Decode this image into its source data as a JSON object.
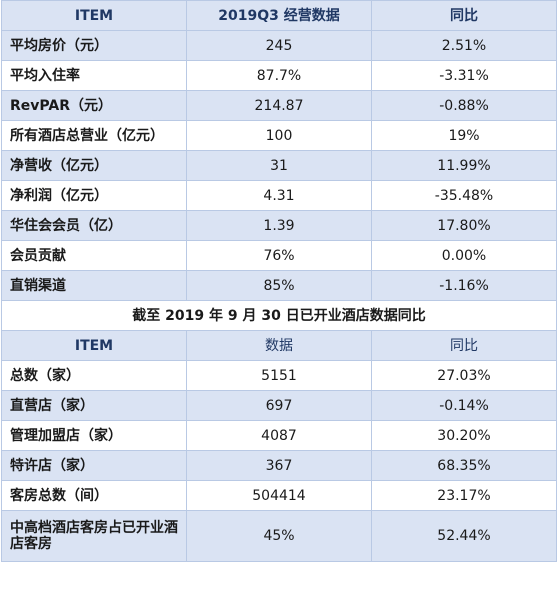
{
  "table1": {
    "headers": [
      "ITEM",
      "2019Q3 经营数据",
      "同比"
    ],
    "rows": [
      {
        "item": "平均房价（元）",
        "value": "245",
        "yoy": "2.51%"
      },
      {
        "item": "平均入住率",
        "value": "87.7%",
        "yoy": "-3.31%"
      },
      {
        "item": "RevPAR（元）",
        "value": "214.87",
        "yoy": "-0.88%"
      },
      {
        "item": "所有酒店总营业（亿元）",
        "value": "100",
        "yoy": "19%"
      },
      {
        "item": "净营收（亿元）",
        "value": "31",
        "yoy": "11.99%"
      },
      {
        "item": "净利润（亿元）",
        "value": "4.31",
        "yoy": "-35.48%"
      },
      {
        "item": "华住会会员（亿）",
        "value": "1.39",
        "yoy": "17.80%"
      },
      {
        "item": "会员贡献",
        "value": "76%",
        "yoy": "0.00%"
      },
      {
        "item": "直销渠道",
        "value": "85%",
        "yoy": "-1.16%"
      }
    ]
  },
  "section_title": "截至 2019 年 9 月 30 日已开业酒店数据同比",
  "table2": {
    "headers": [
      "ITEM",
      "数据",
      "同比"
    ],
    "rows": [
      {
        "item": "总数（家）",
        "value": "5151",
        "yoy": "27.03%"
      },
      {
        "item": "直营店（家）",
        "value": "697",
        "yoy": "-0.14%"
      },
      {
        "item": "管理加盟店（家）",
        "value": "4087",
        "yoy": "30.20%"
      },
      {
        "item": "特许店（家）",
        "value": "367",
        "yoy": "68.35%"
      },
      {
        "item": "客房总数（间）",
        "value": "504414",
        "yoy": "23.17%"
      },
      {
        "item": "中高档酒店客房占已开业酒店客房",
        "value": "45%",
        "yoy": "52.44%"
      }
    ]
  }
}
